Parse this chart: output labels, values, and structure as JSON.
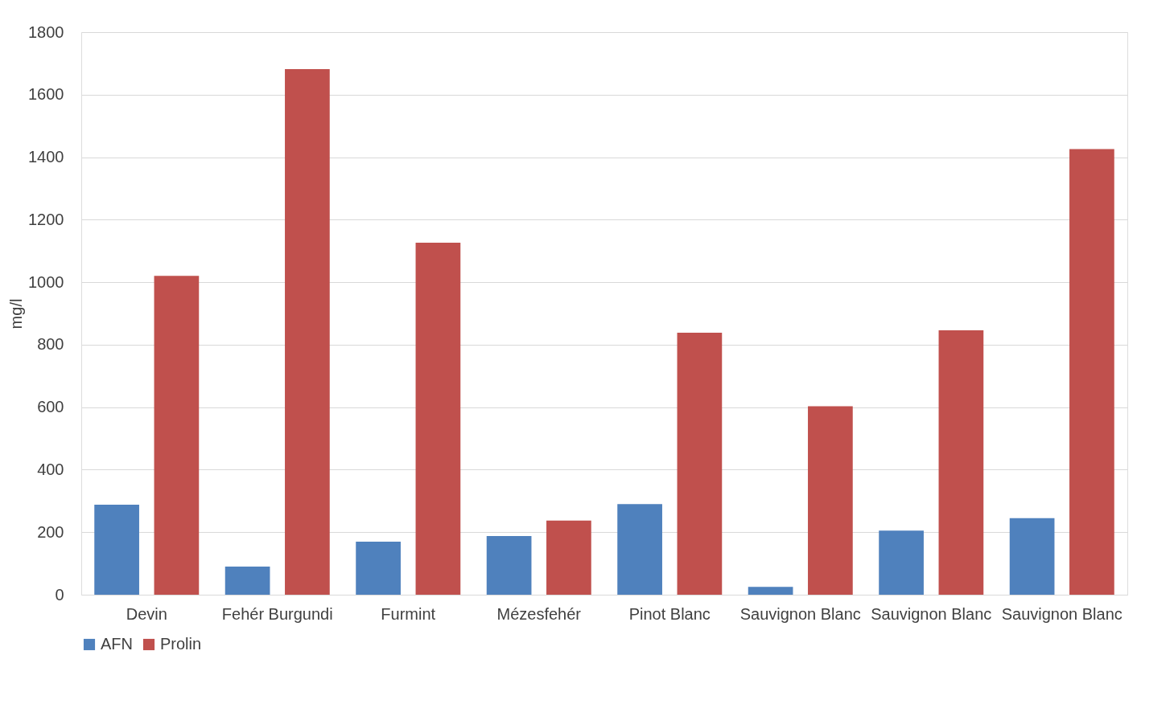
{
  "chart_data": {
    "type": "bar",
    "ylabel": "mg/l",
    "categories": [
      "Devin",
      "Fehér Burgundi",
      "Furmint",
      "Mézesfehér",
      "Pinot Blanc",
      "Sauvignon Blanc",
      "Sauvignon Blanc",
      "Sauvignon Blanc"
    ],
    "series": [
      {
        "name": "AFN",
        "color": "#4f81bd",
        "values": [
          288,
          90,
          170,
          188,
          290,
          25,
          205,
          245
        ]
      },
      {
        "name": "Prolin",
        "color": "#c0504d",
        "values": [
          1020,
          1682,
          1126,
          237,
          838,
          603,
          846,
          1426
        ]
      }
    ],
    "ylim": [
      0,
      1800
    ],
    "yticks": [
      0,
      200,
      400,
      600,
      800,
      1000,
      1200,
      1400,
      1600,
      1800
    ],
    "grid": "y",
    "legend": "bottom"
  }
}
